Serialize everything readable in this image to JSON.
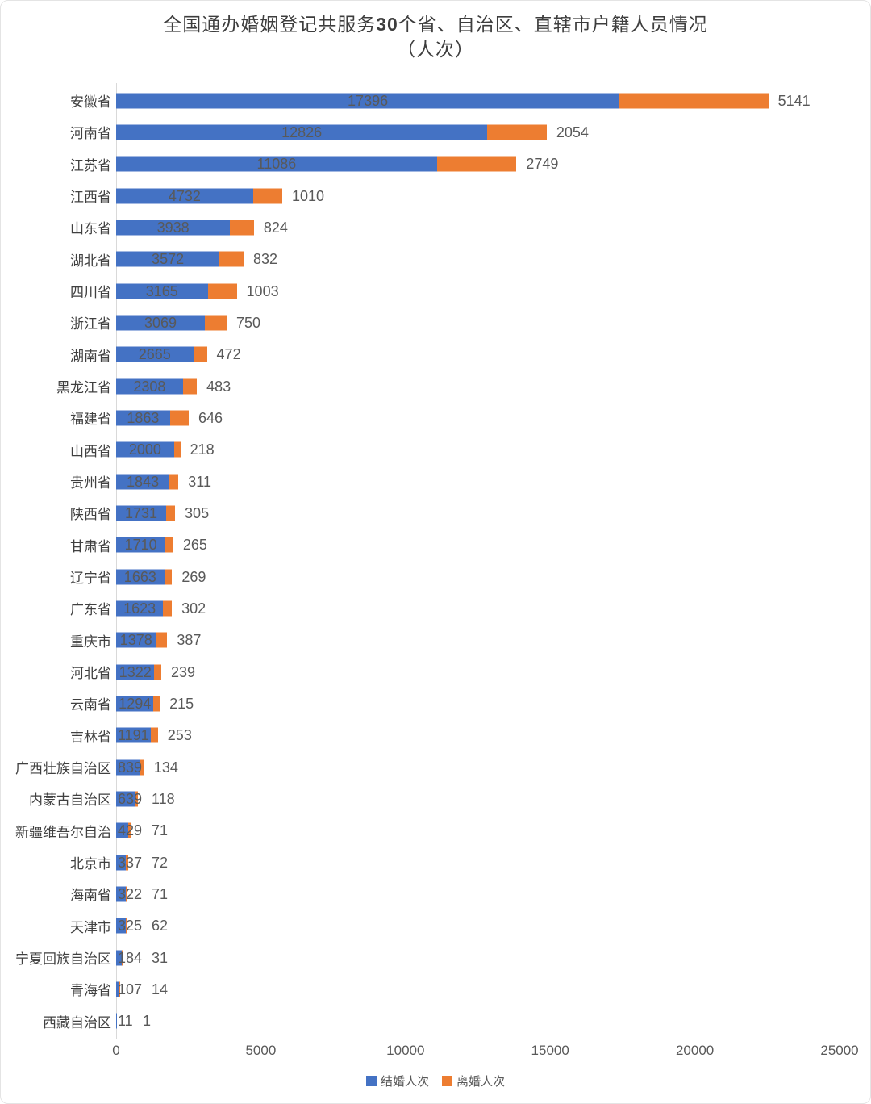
{
  "title": {
    "prefix": "全国通办婚姻登记共服务",
    "bold_number": "30",
    "suffix": "个省、自治区、直辖市户籍人员情况",
    "line2": "（人次）"
  },
  "legend": {
    "items": [
      {
        "label": "结婚人次",
        "color": "#4472C4"
      },
      {
        "label": "离婚人次",
        "color": "#ED7D31"
      }
    ]
  },
  "colors": {
    "marriage_blue": "#4472C4",
    "divorce_orange": "#ED7D31",
    "value_label": "#595959",
    "category_label": "#404040",
    "axis_line": "#d9d9d9"
  },
  "chart_data": {
    "type": "bar",
    "orientation": "horizontal",
    "stacked": true,
    "grid": false,
    "legend_position": "bottom",
    "title": "全国通办婚姻登记共服务30个省、自治区、直辖市户籍人员情况（人次）",
    "xlabel": "",
    "ylabel": "",
    "xlim": [
      0,
      25000
    ],
    "xticks": [
      0,
      5000,
      10000,
      15000,
      20000,
      25000
    ],
    "categories": [
      "安徽省",
      "河南省",
      "江苏省",
      "江西省",
      "山东省",
      "湖北省",
      "四川省",
      "浙江省",
      "湖南省",
      "黑龙江省",
      "福建省",
      "山西省",
      "贵州省",
      "陕西省",
      "甘肃省",
      "辽宁省",
      "广东省",
      "重庆市",
      "河北省",
      "云南省",
      "吉林省",
      "广西壮族自治区",
      "内蒙古自治区",
      "新疆维吾尔自治",
      "北京市",
      "海南省",
      "天津市",
      "宁夏回族自治区",
      "青海省",
      "西藏自治区"
    ],
    "series": [
      {
        "name": "结婚人次",
        "color": "#4472C4",
        "values": [
          17396,
          12826,
          11086,
          4732,
          3938,
          3572,
          3165,
          3069,
          2665,
          2308,
          1863,
          2000,
          1843,
          1731,
          1710,
          1663,
          1623,
          1378,
          1322,
          1294,
          1191,
          839,
          639,
          429,
          337,
          322,
          325,
          184,
          107,
          11
        ]
      },
      {
        "name": "离婚人次",
        "color": "#ED7D31",
        "values": [
          5141,
          2054,
          2749,
          1010,
          824,
          832,
          1003,
          750,
          472,
          483,
          646,
          218,
          311,
          305,
          265,
          269,
          302,
          387,
          239,
          215,
          253,
          134,
          118,
          71,
          72,
          71,
          62,
          31,
          14,
          1
        ]
      }
    ]
  }
}
